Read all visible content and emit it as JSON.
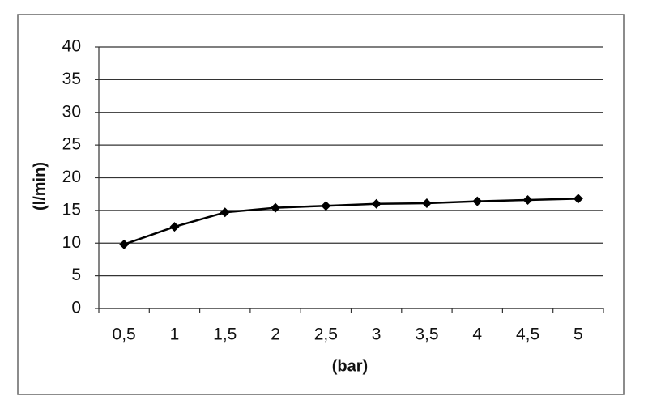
{
  "chart_data": {
    "type": "line",
    "x_label": "(bar)",
    "y_label": "(l/min)",
    "categories": [
      "0,5",
      "1",
      "1,5",
      "2",
      "2,5",
      "3",
      "3,5",
      "4",
      "4,5",
      "5"
    ],
    "values": [
      9.8,
      12.5,
      14.7,
      15.4,
      15.7,
      16.0,
      16.1,
      16.4,
      16.6,
      16.8
    ],
    "color": "#000000",
    "ylim": [
      0,
      40
    ],
    "yticks": [
      0,
      5,
      10,
      15,
      20,
      25,
      30,
      35,
      40
    ],
    "grid": true
  }
}
